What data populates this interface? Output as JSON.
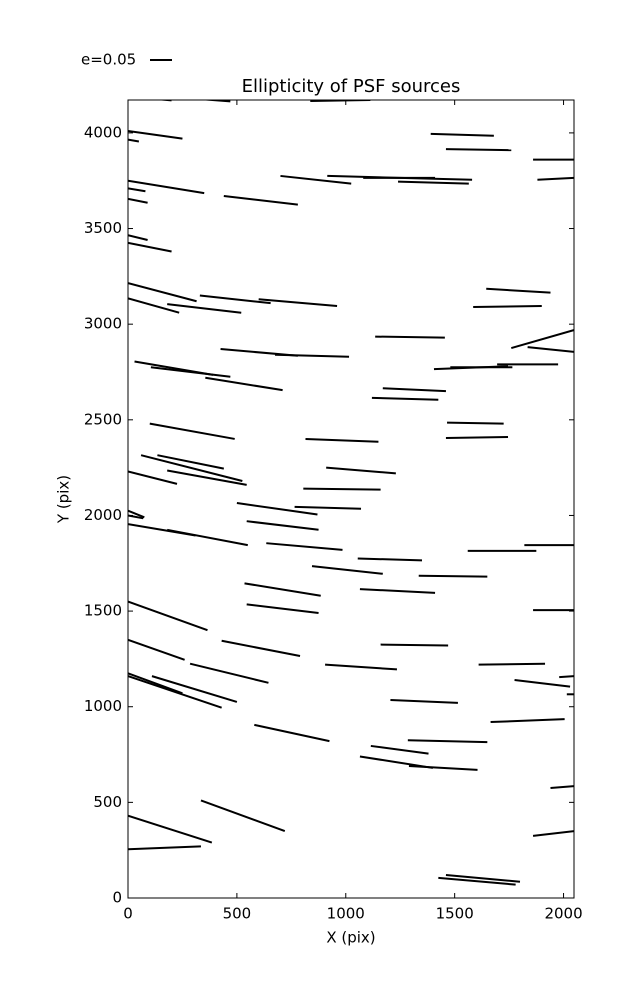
{
  "chart_data": {
    "type": "segments",
    "title": "Ellipticity of PSF sources",
    "x_label": "X (pix)",
    "y_label": "Y (pix)",
    "legend_label": "e=0.05",
    "color": "#000000",
    "xlim": [
      0,
      2048
    ],
    "ylim": [
      0,
      4172
    ],
    "xticks": [
      0,
      500,
      1000,
      1500,
      2000
    ],
    "yticks": [
      0,
      500,
      1000,
      1500,
      2000,
      2500,
      3000,
      3500,
      4000
    ],
    "x_start": [
      100,
      350,
      837,
      0,
      0,
      1390,
      1460,
      1860,
      0,
      0,
      0,
      1880,
      700,
      915,
      1080,
      1240,
      440,
      0,
      0,
      1645,
      0,
      0,
      330,
      600,
      180,
      1585,
      1760,
      1135,
      1835,
      30,
      105,
      425,
      675,
      1405,
      1480,
      1695,
      355,
      1170,
      1120,
      1465,
      1460,
      100,
      815,
      60,
      135,
      0,
      180,
      910,
      805,
      500,
      765,
      0,
      0,
      0,
      180,
      545,
      635,
      1055,
      845,
      1335,
      1560,
      1820,
      535,
      1065,
      0,
      545,
      1860,
      0,
      430,
      1160,
      285,
      905,
      1610,
      1980,
      1775,
      2015,
      0,
      0,
      110,
      1205,
      1665,
      580,
      1285,
      1115,
      1065,
      1290,
      1940,
      335,
      0,
      0,
      1860,
      1460,
      1425
    ],
    "y_start": [
      4180,
      4175,
      4167,
      4010,
      3965,
      3995,
      3915,
      3860,
      3750,
      3710,
      3655,
      3755,
      3775,
      3775,
      3765,
      3745,
      3670,
      3465,
      3425,
      3185,
      3215,
      3135,
      3150,
      3130,
      3105,
      3090,
      2875,
      2935,
      2880,
      2805,
      2775,
      2870,
      2840,
      2765,
      2775,
      2790,
      2720,
      2665,
      2615,
      2485,
      2405,
      2480,
      2400,
      2315,
      2315,
      2230,
      2235,
      2250,
      2140,
      2065,
      2045,
      2025,
      2000,
      1955,
      1925,
      1970,
      1855,
      1775,
      1735,
      1685,
      1815,
      1845,
      1645,
      1615,
      1550,
      1535,
      1505,
      1350,
      1345,
      1325,
      1225,
      1220,
      1220,
      1155,
      1140,
      1065,
      1175,
      1160,
      1160,
      1035,
      920,
      905,
      825,
      795,
      740,
      690,
      575,
      510,
      430,
      255,
      325,
      120,
      105
    ],
    "x_end": [
      200,
      470,
      1113,
      250,
      50,
      1680,
      1760,
      2050,
      350,
      80,
      90,
      2050,
      1025,
      1580,
      1410,
      1565,
      780,
      90,
      200,
      1940,
      315,
      235,
      655,
      960,
      520,
      1900,
      2050,
      1455,
      2050,
      390,
      470,
      780,
      1015,
      1745,
      1765,
      1975,
      710,
      1460,
      1425,
      1725,
      1745,
      490,
      1150,
      525,
      440,
      225,
      545,
      1230,
      1160,
      870,
      1070,
      75,
      70,
      310,
      550,
      875,
      985,
      1350,
      1170,
      1650,
      1875,
      2050,
      885,
      1410,
      365,
      875,
      2050,
      260,
      790,
      1470,
      645,
      1235,
      1915,
      2050,
      2030,
      2050,
      250,
      430,
      500,
      1515,
      2005,
      925,
      1650,
      1380,
      1400,
      1605,
      2050,
      720,
      385,
      335,
      2050,
      1800,
      1780
    ],
    "y_end": [
      4170,
      4165,
      4172,
      3970,
      3955,
      3985,
      3910,
      3860,
      3685,
      3695,
      3635,
      3765,
      3735,
      3755,
      3765,
      3735,
      3625,
      3440,
      3380,
      3165,
      3120,
      3060,
      3110,
      3095,
      3060,
      3095,
      2970,
      2930,
      2855,
      2735,
      2725,
      2835,
      2830,
      2780,
      2775,
      2790,
      2655,
      2650,
      2605,
      2480,
      2410,
      2400,
      2385,
      2180,
      2245,
      2165,
      2160,
      2220,
      2135,
      2005,
      2035,
      1990,
      1985,
      1895,
      1845,
      1925,
      1820,
      1765,
      1695,
      1680,
      1815,
      1845,
      1580,
      1595,
      1400,
      1490,
      1505,
      1245,
      1265,
      1320,
      1125,
      1195,
      1225,
      1160,
      1105,
      1065,
      1070,
      995,
      1025,
      1020,
      935,
      820,
      815,
      755,
      680,
      670,
      585,
      350,
      290,
      270,
      350,
      85,
      70
    ]
  }
}
